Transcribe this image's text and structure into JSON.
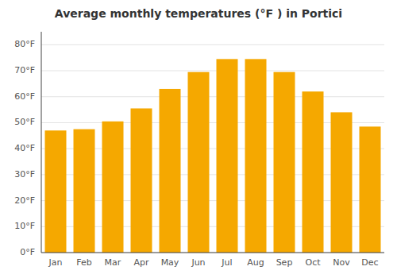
{
  "chart_data": {
    "type": "bar",
    "title": "Average monthly temperatures (°F ) in Portici",
    "categories": [
      "Jan",
      "Feb",
      "Mar",
      "Apr",
      "May",
      "Jun",
      "Jul",
      "Aug",
      "Sep",
      "Oct",
      "Nov",
      "Dec"
    ],
    "values": [
      47,
      47.5,
      50.5,
      55.5,
      63,
      69.5,
      74.5,
      74.5,
      69.5,
      62,
      54,
      48.5
    ],
    "color": "#F5A800",
    "ylim": [
      0,
      85
    ],
    "yticks": [
      {
        "value": 0,
        "label": "0°F"
      },
      {
        "value": 10,
        "label": "10°F"
      },
      {
        "value": 20,
        "label": "20°F"
      },
      {
        "value": 30,
        "label": "30°F"
      },
      {
        "value": 40,
        "label": "40°F"
      },
      {
        "value": 50,
        "label": "50°F"
      },
      {
        "value": 60,
        "label": "60°F"
      },
      {
        "value": 70,
        "label": "70°F"
      },
      {
        "value": 80,
        "label": "80°F"
      }
    ],
    "grid": true
  }
}
